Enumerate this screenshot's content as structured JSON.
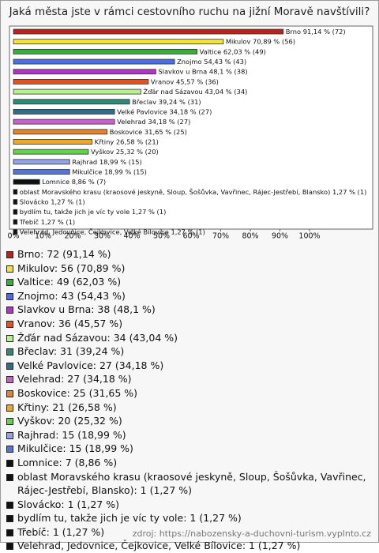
{
  "chart_data": {
    "type": "bar",
    "orientation": "horizontal",
    "title": "Jaká města jste v rámci cestovního ruchu na jižní Moravě navštívili?",
    "categories": [
      "Brno",
      "Mikulov",
      "Valtice",
      "Znojmo",
      "Slavkov u Brna",
      "Vranov",
      "Žďár nad Sázavou",
      "Břeclav",
      "Velké Pavlovice",
      "Velehrad",
      "Boskovice",
      "Křtiny",
      "Vyškov",
      "Rajhrad",
      "Mikulčice",
      "Lomnice",
      "oblast Moravského krasu (kraosové jeskyně, Sloup, Šošůvka, Vavřinec, Rájec-Jestřebí, Blansko)",
      "Slovácko",
      "bydlím tu, takže jich je víc ty vole",
      "Třebíč",
      "Velehrad, Jedovnice, Čejkovice, Velké Bílovice"
    ],
    "values": [
      91.14,
      70.89,
      62.03,
      54.43,
      48.1,
      45.57,
      43.04,
      39.24,
      34.18,
      34.18,
      31.65,
      26.58,
      25.32,
      18.99,
      18.99,
      8.86,
      1.27,
      1.27,
      1.27,
      1.27,
      1.27
    ],
    "value_labels": [
      "91,14 % (72)",
      "70,89 % (56)",
      "62,03 % (49)",
      "54,43 % (43)",
      "48,1 % (38)",
      "45,57 % (36)",
      "43,04 % (34)",
      "39,24 % (31)",
      "34,18 % (27)",
      "34,18 % (27)",
      "31,65 % (25)",
      "26,58 % (21)",
      "25,32 % (20)",
      "18,99 % (15)",
      "18,99 % (15)",
      "8,86 % (7)",
      "1,27 % (1)",
      "1,27 % (1)",
      "1,27 % (1)",
      "1,27 % (1)",
      "1,27 % (1)"
    ],
    "legend_labels": [
      "Brno: 72 (91,14 %)",
      "Mikulov: 56 (70,89 %)",
      "Valtice: 49 (62,03 %)",
      "Znojmo: 43 (54,43 %)",
      "Slavkov u Brna: 38 (48,1 %)",
      "Vranov: 36 (45,57 %)",
      "Žďár nad Sázavou: 34 (43,04 %)",
      "Břeclav: 31 (39,24 %)",
      "Velké Pavlovice: 27 (34,18 %)",
      "Velehrad: 27 (34,18 %)",
      "Boskovice: 25 (31,65 %)",
      "Křtiny: 21 (26,58 %)",
      "Vyškov: 20 (25,32 %)",
      "Rajhrad: 15 (18,99 %)",
      "Mikulčice: 15 (18,99 %)",
      "Lomnice: 7 (8,86 %)",
      "oblast Moravského krasu (kraosové jeskyně, Sloup, Šošůvka, Vavřinec, Rájec-Jestřebí, Blansko): 1 (1,27 %)",
      "Slovácko: 1 (1,27 %)",
      "bydlím tu, takže jich je víc ty vole: 1 (1,27 %)",
      "Třebíč: 1 (1,27 %)",
      "Velehrad, Jedovnice, Čejkovice, Velké Bílovice: 1 (1,27 %)"
    ],
    "colors": [
      "#b8231a",
      "#f2e33a",
      "#35b035",
      "#4a6ee6",
      "#b233c8",
      "#e2521e",
      "#b6f28a",
      "#2d8a76",
      "#2b6e8e",
      "#c463c6",
      "#e6822a",
      "#f2a628",
      "#62d24a",
      "#93a4e6",
      "#5574d8",
      "#111111",
      "#111111",
      "#111111",
      "#111111",
      "#111111",
      "#111111"
    ],
    "xlim": [
      0,
      120
    ],
    "xticks": [
      {
        "value": 0,
        "label": "0%"
      },
      {
        "value": 10,
        "label": "10%"
      },
      {
        "value": 20,
        "label": "20%"
      },
      {
        "value": 30,
        "label": "30%"
      },
      {
        "value": 40,
        "label": "40%"
      },
      {
        "value": 50,
        "label": "50%"
      },
      {
        "value": 60,
        "label": "60%"
      },
      {
        "value": 70,
        "label": "70%"
      },
      {
        "value": 80,
        "label": "80%"
      },
      {
        "value": 90,
        "label": "90%"
      },
      {
        "value": 100,
        "label": "100%"
      }
    ],
    "source": "zdroj: https://nabozensky-a-duchovni-turism.vyplnto.cz"
  }
}
